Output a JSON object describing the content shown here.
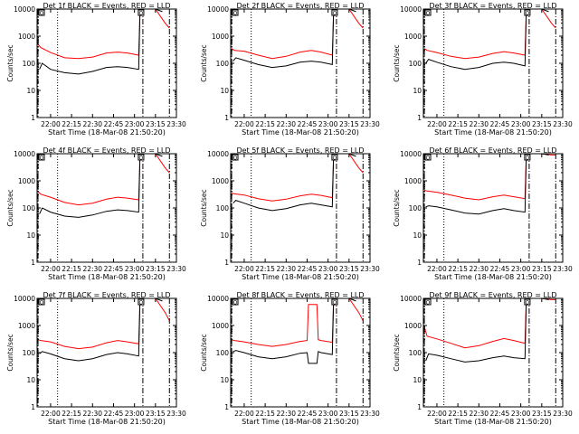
{
  "colors": {
    "background": "#ffffff",
    "events": "#000000",
    "lld": "#ff0000",
    "axes": "#000000"
  },
  "chart_data": [
    {
      "type": "line",
      "title": "Det 1f BLACK = Events, RED = LLD",
      "xlabel": "Start Time (18-Mar-08 21:50:20)",
      "ylabel": "Counts/sec",
      "y_scale": "log",
      "ylim": [
        1,
        10000
      ],
      "xlim": [
        "21:50:20",
        "23:30:00"
      ],
      "x_ticks": [
        "22:00",
        "22:15",
        "22:30",
        "22:45",
        "23:00",
        "23:15",
        "23:30"
      ],
      "y_ticks": [
        "1",
        "10",
        "100",
        "1000",
        "10000"
      ],
      "series": [
        {
          "color": "#ff0000",
          "x": [
            "21:51",
            "21:53",
            "22:00",
            "22:10",
            "22:20",
            "22:30",
            "22:40",
            "22:48",
            "22:55",
            "23:03",
            "23:04",
            "23:05",
            "23:07",
            "23:15",
            "23:22",
            "23:25"
          ],
          "values": [
            500,
            380,
            250,
            160,
            150,
            170,
            240,
            260,
            240,
            200,
            10000,
            10000,
            10000,
            10000,
            3000,
            2000
          ]
        },
        {
          "color": "#000000",
          "x": [
            "21:52",
            "21:54",
            "22:00",
            "22:10",
            "22:20",
            "22:30",
            "22:40",
            "22:48",
            "22:55",
            "23:03",
            "23:04",
            "23:05",
            "23:07",
            "23:15",
            "23:20"
          ],
          "values": [
            60,
            100,
            60,
            45,
            40,
            50,
            70,
            75,
            70,
            60,
            10000,
            10000,
            10000,
            10000,
            8000
          ]
        }
      ],
      "markers": {
        "dash_dot_lines": [
          "21:51",
          "23:06",
          "23:25"
        ],
        "dotted_line": "22:05",
        "box_label": "O"
      }
    },
    {
      "type": "line",
      "title": "Det 2f BLACK = Events, RED = LLD",
      "xlabel": "Start Time (18-Mar-08 21:50:20)",
      "ylabel": "Counts/sec",
      "y_scale": "log",
      "ylim": [
        1,
        10000
      ],
      "xlim": [
        "21:50:20",
        "23:30:00"
      ],
      "x_ticks": [
        "22:00",
        "22:15",
        "22:30",
        "22:45",
        "23:00",
        "23:15",
        "23:30"
      ],
      "y_ticks": [
        "1",
        "10",
        "100",
        "1000",
        "10000"
      ],
      "series": [
        {
          "color": "#ff0000",
          "x": [
            "21:51",
            "21:53",
            "22:00",
            "22:10",
            "22:20",
            "22:30",
            "22:40",
            "22:48",
            "22:55",
            "23:03",
            "23:04",
            "23:05",
            "23:07",
            "23:15",
            "23:22",
            "23:25"
          ],
          "values": [
            350,
            300,
            280,
            200,
            150,
            180,
            260,
            300,
            260,
            200,
            10000,
            10000,
            10000,
            10000,
            3000,
            2000
          ]
        },
        {
          "color": "#000000",
          "x": [
            "21:52",
            "21:54",
            "22:00",
            "22:10",
            "22:20",
            "22:30",
            "22:40",
            "22:48",
            "22:55",
            "23:03",
            "23:04",
            "23:05",
            "23:07",
            "23:15",
            "23:20"
          ],
          "values": [
            120,
            160,
            130,
            90,
            70,
            80,
            110,
            120,
            110,
            90,
            10000,
            10000,
            10000,
            10000,
            8000
          ]
        }
      ],
      "markers": {
        "dash_dot_lines": [
          "21:51",
          "23:06",
          "23:25"
        ],
        "dotted_line": "22:05",
        "box_label": "O"
      }
    },
    {
      "type": "line",
      "title": "Det 3f BLACK = Events, RED = LLD",
      "xlabel": "Start Time (18-Mar-08 21:50:20)",
      "ylabel": "Counts/sec",
      "y_scale": "log",
      "ylim": [
        1,
        10000
      ],
      "xlim": [
        "21:50:20",
        "23:30:00"
      ],
      "x_ticks": [
        "22:00",
        "22:15",
        "22:30",
        "22:45",
        "23:00",
        "23:15",
        "23:30"
      ],
      "y_ticks": [
        "1",
        "10",
        "100",
        "1000",
        "10000"
      ],
      "series": [
        {
          "color": "#ff0000",
          "x": [
            "21:51",
            "21:53",
            "22:00",
            "22:10",
            "22:20",
            "22:30",
            "22:40",
            "22:48",
            "22:55",
            "23:03",
            "23:04",
            "23:05",
            "23:07",
            "23:15",
            "23:22",
            "23:25"
          ],
          "values": [
            350,
            300,
            250,
            180,
            150,
            170,
            230,
            270,
            240,
            200,
            10000,
            10000,
            10000,
            10000,
            3000,
            2000
          ]
        },
        {
          "color": "#000000",
          "x": [
            "21:52",
            "21:54",
            "22:00",
            "22:10",
            "22:20",
            "22:30",
            "22:40",
            "22:48",
            "22:55",
            "23:03",
            "23:04",
            "23:05",
            "23:07",
            "23:15",
            "23:20"
          ],
          "values": [
            100,
            140,
            110,
            75,
            60,
            70,
            100,
            110,
            100,
            80,
            10000,
            10000,
            10000,
            10000,
            8000
          ]
        }
      ],
      "markers": {
        "dash_dot_lines": [
          "21:51",
          "23:06",
          "23:25"
        ],
        "dotted_line": "22:05",
        "box_label": "O"
      }
    },
    {
      "type": "line",
      "title": "Det 4f BLACK = Events, RED = LLD",
      "xlabel": "Start Time (18-Mar-08 21:50:20)",
      "ylabel": "Counts/sec",
      "y_scale": "log",
      "ylim": [
        1,
        10000
      ],
      "xlim": [
        "21:50:20",
        "23:30:00"
      ],
      "x_ticks": [
        "22:00",
        "22:15",
        "22:30",
        "22:45",
        "23:00",
        "23:15",
        "23:30"
      ],
      "y_ticks": [
        "1",
        "10",
        "100",
        "1000",
        "10000"
      ],
      "series": [
        {
          "color": "#ff0000",
          "x": [
            "21:51",
            "21:53",
            "22:00",
            "22:10",
            "22:20",
            "22:30",
            "22:40",
            "22:48",
            "22:55",
            "23:03",
            "23:04",
            "23:05",
            "23:07",
            "23:15",
            "23:22",
            "23:25"
          ],
          "values": [
            400,
            320,
            250,
            160,
            130,
            150,
            210,
            250,
            230,
            200,
            10000,
            10000,
            10000,
            10000,
            3000,
            2000
          ]
        },
        {
          "color": "#000000",
          "x": [
            "21:52",
            "21:54",
            "22:00",
            "22:10",
            "22:20",
            "22:30",
            "22:40",
            "22:48",
            "22:55",
            "23:03",
            "23:04",
            "23:05",
            "23:07",
            "23:15",
            "23:20"
          ],
          "values": [
            60,
            100,
            70,
            50,
            45,
            55,
            75,
            85,
            80,
            70,
            10000,
            10000,
            10000,
            10000,
            8000
          ]
        }
      ],
      "markers": {
        "dash_dot_lines": [
          "21:51",
          "23:06",
          "23:25"
        ],
        "dotted_line": "22:05",
        "box_label": "O"
      }
    },
    {
      "type": "line",
      "title": "Det 5f BLACK = Events, RED = LLD",
      "xlabel": "Start Time (18-Mar-08 21:50:20)",
      "ylabel": "Counts/sec",
      "y_scale": "log",
      "ylim": [
        1,
        10000
      ],
      "xlim": [
        "21:50:20",
        "23:30:00"
      ],
      "x_ticks": [
        "22:00",
        "22:15",
        "22:30",
        "22:45",
        "23:00",
        "23:15",
        "23:30"
      ],
      "y_ticks": [
        "1",
        "10",
        "100",
        "1000",
        "10000"
      ],
      "series": [
        {
          "color": "#ff0000",
          "x": [
            "21:51",
            "21:53",
            "22:00",
            "22:10",
            "22:20",
            "22:30",
            "22:40",
            "22:48",
            "22:55",
            "23:03",
            "23:04",
            "23:05",
            "23:07",
            "23:15",
            "23:22",
            "23:25"
          ],
          "values": [
            350,
            330,
            300,
            220,
            180,
            210,
            280,
            320,
            290,
            240,
            10000,
            10000,
            10000,
            10000,
            3000,
            2000
          ]
        },
        {
          "color": "#000000",
          "x": [
            "21:52",
            "21:54",
            "22:00",
            "22:10",
            "22:20",
            "22:30",
            "22:40",
            "22:48",
            "22:55",
            "23:03",
            "23:04",
            "23:05",
            "23:07",
            "23:15",
            "23:20"
          ],
          "values": [
            150,
            190,
            150,
            100,
            80,
            95,
            130,
            150,
            130,
            110,
            10000,
            10000,
            10000,
            10000,
            8000
          ]
        }
      ],
      "markers": {
        "dash_dot_lines": [
          "21:51",
          "23:06",
          "23:25"
        ],
        "dotted_line": "22:05",
        "box_label": "O"
      }
    },
    {
      "type": "line",
      "title": "Det 6f BLACK = Events, RED = LLD",
      "xlabel": "Start Time (18-Mar-08 21:50:20)",
      "ylabel": "Counts/sec",
      "y_scale": "log",
      "ylim": [
        1,
        10000
      ],
      "xlim": [
        "21:50:20",
        "23:30:00"
      ],
      "x_ticks": [
        "22:00",
        "22:15",
        "22:30",
        "22:45",
        "23:00",
        "23:15",
        "23:30"
      ],
      "y_ticks": [
        "1",
        "10",
        "100",
        "1000",
        "10000"
      ],
      "series": [
        {
          "color": "#ff0000",
          "x": [
            "21:51",
            "21:53",
            "22:00",
            "22:10",
            "22:20",
            "22:30",
            "22:40",
            "22:48",
            "22:55",
            "23:03",
            "23:04",
            "23:05",
            "23:07",
            "23:15",
            "23:22",
            "23:25"
          ],
          "values": [
            450,
            420,
            380,
            300,
            230,
            200,
            260,
            300,
            260,
            220,
            10000,
            10000,
            10000,
            10000,
            9000,
            9000
          ]
        },
        {
          "color": "#000000",
          "x": [
            "21:52",
            "21:54",
            "22:00",
            "22:10",
            "22:20",
            "22:30",
            "22:40",
            "22:48",
            "22:55",
            "23:03",
            "23:04",
            "23:05",
            "23:07",
            "23:15",
            "23:20"
          ],
          "values": [
            110,
            120,
            110,
            85,
            65,
            60,
            80,
            95,
            80,
            70,
            10000,
            10000,
            10000,
            10000,
            9000
          ]
        }
      ],
      "markers": {
        "dash_dot_lines": [
          "21:51",
          "23:06",
          "23:25"
        ],
        "dotted_line": "22:05",
        "box_label": "O"
      }
    },
    {
      "type": "line",
      "title": "Det 7f BLACK = Events, RED = LLD",
      "xlabel": "Start Time (18-Mar-08 21:50:20)",
      "ylabel": "Counts/sec",
      "y_scale": "log",
      "ylim": [
        1,
        10000
      ],
      "xlim": [
        "21:50:20",
        "23:30:00"
      ],
      "x_ticks": [
        "22:00",
        "22:15",
        "22:30",
        "22:45",
        "23:00",
        "23:15",
        "23:30"
      ],
      "y_ticks": [
        "1",
        "10",
        "100",
        "1000",
        "10000"
      ],
      "series": [
        {
          "color": "#ff0000",
          "x": [
            "21:51",
            "21:53",
            "22:00",
            "22:10",
            "22:20",
            "22:30",
            "22:40",
            "22:48",
            "22:55",
            "23:03",
            "23:04",
            "23:05",
            "23:07",
            "23:15",
            "23:22",
            "23:25"
          ],
          "values": [
            300,
            280,
            250,
            170,
            140,
            160,
            230,
            280,
            250,
            210,
            10000,
            10000,
            10000,
            10000,
            3000,
            1500
          ]
        },
        {
          "color": "#000000",
          "x": [
            "21:52",
            "21:54",
            "22:00",
            "22:10",
            "22:20",
            "22:30",
            "22:40",
            "22:48",
            "22:55",
            "23:03",
            "23:04",
            "23:05",
            "23:07",
            "23:15",
            "23:20"
          ],
          "values": [
            90,
            110,
            90,
            60,
            50,
            60,
            85,
            100,
            90,
            75,
            10000,
            10000,
            10000,
            10000,
            8000
          ]
        }
      ],
      "markers": {
        "dash_dot_lines": [
          "21:51",
          "23:06",
          "23:25"
        ],
        "dotted_line": "22:05",
        "box_label": "O"
      }
    },
    {
      "type": "line",
      "title": "Det 8f BLACK = Events, RED = LLD",
      "xlabel": "Start Time (18-Mar-08 21:50:20)",
      "ylabel": "Counts/sec",
      "y_scale": "log",
      "ylim": [
        1,
        10000
      ],
      "xlim": [
        "21:50:20",
        "23:30:00"
      ],
      "x_ticks": [
        "22:00",
        "22:15",
        "22:30",
        "22:45",
        "23:00",
        "23:15",
        "23:30"
      ],
      "y_ticks": [
        "1",
        "10",
        "100",
        "1000",
        "10000"
      ],
      "series": [
        {
          "color": "#ff0000",
          "x": [
            "21:51",
            "21:53",
            "22:00",
            "22:10",
            "22:20",
            "22:30",
            "22:40",
            "22:45",
            "22:46",
            "22:52",
            "22:53",
            "22:55",
            "23:03",
            "23:04",
            "23:05",
            "23:07",
            "23:15",
            "23:22",
            "23:25"
          ],
          "values": [
            300,
            280,
            250,
            200,
            170,
            200,
            260,
            280,
            6000,
            6000,
            300,
            280,
            240,
            10000,
            10000,
            10000,
            10000,
            3000,
            1500
          ]
        },
        {
          "color": "#000000",
          "x": [
            "21:52",
            "21:54",
            "22:00",
            "22:10",
            "22:20",
            "22:30",
            "22:40",
            "22:45",
            "22:46",
            "22:52",
            "22:53",
            "22:55",
            "23:03",
            "23:04",
            "23:05",
            "23:07",
            "23:15",
            "23:20"
          ],
          "values": [
            110,
            120,
            100,
            70,
            60,
            70,
            95,
            100,
            40,
            40,
            110,
            100,
            85,
            10000,
            10000,
            10000,
            10000,
            8000
          ]
        }
      ],
      "markers": {
        "dash_dot_lines": [
          "21:51",
          "23:06",
          "23:25"
        ],
        "dotted_line": "22:05",
        "box_label": "O"
      }
    },
    {
      "type": "line",
      "title": "Det 9f BLACK = Events, RED = LLD",
      "xlabel": "Start Time (18-Mar-08 21:50:20)",
      "ylabel": "Counts/sec",
      "y_scale": "log",
      "ylim": [
        1,
        10000
      ],
      "xlim": [
        "21:50:20",
        "23:30:00"
      ],
      "x_ticks": [
        "22:00",
        "22:15",
        "22:30",
        "22:45",
        "23:00",
        "23:15",
        "23:30"
      ],
      "y_ticks": [
        "1",
        "10",
        "100",
        "1000",
        "10000"
      ],
      "series": [
        {
          "color": "#ff0000",
          "x": [
            "21:51",
            "21:53",
            "22:00",
            "22:10",
            "22:20",
            "22:30",
            "22:40",
            "22:48",
            "22:55",
            "23:03",
            "23:04",
            "23:05",
            "23:07",
            "23:15",
            "23:22",
            "23:25"
          ],
          "values": [
            900,
            400,
            320,
            220,
            150,
            180,
            260,
            330,
            280,
            220,
            10000,
            10000,
            10000,
            10000,
            9000,
            9000
          ]
        },
        {
          "color": "#000000",
          "x": [
            "21:52",
            "21:54",
            "22:00",
            "22:10",
            "22:20",
            "22:30",
            "22:40",
            "22:48",
            "22:55",
            "23:03",
            "23:04",
            "23:05",
            "23:07",
            "23:15",
            "23:20"
          ],
          "values": [
            50,
            90,
            80,
            60,
            45,
            50,
            65,
            75,
            65,
            60,
            10000,
            10000,
            10000,
            10000,
            9000
          ]
        }
      ],
      "markers": {
        "dash_dot_lines": [
          "21:51",
          "23:06",
          "23:25"
        ],
        "dotted_line": "22:05",
        "box_label": "O"
      }
    }
  ]
}
